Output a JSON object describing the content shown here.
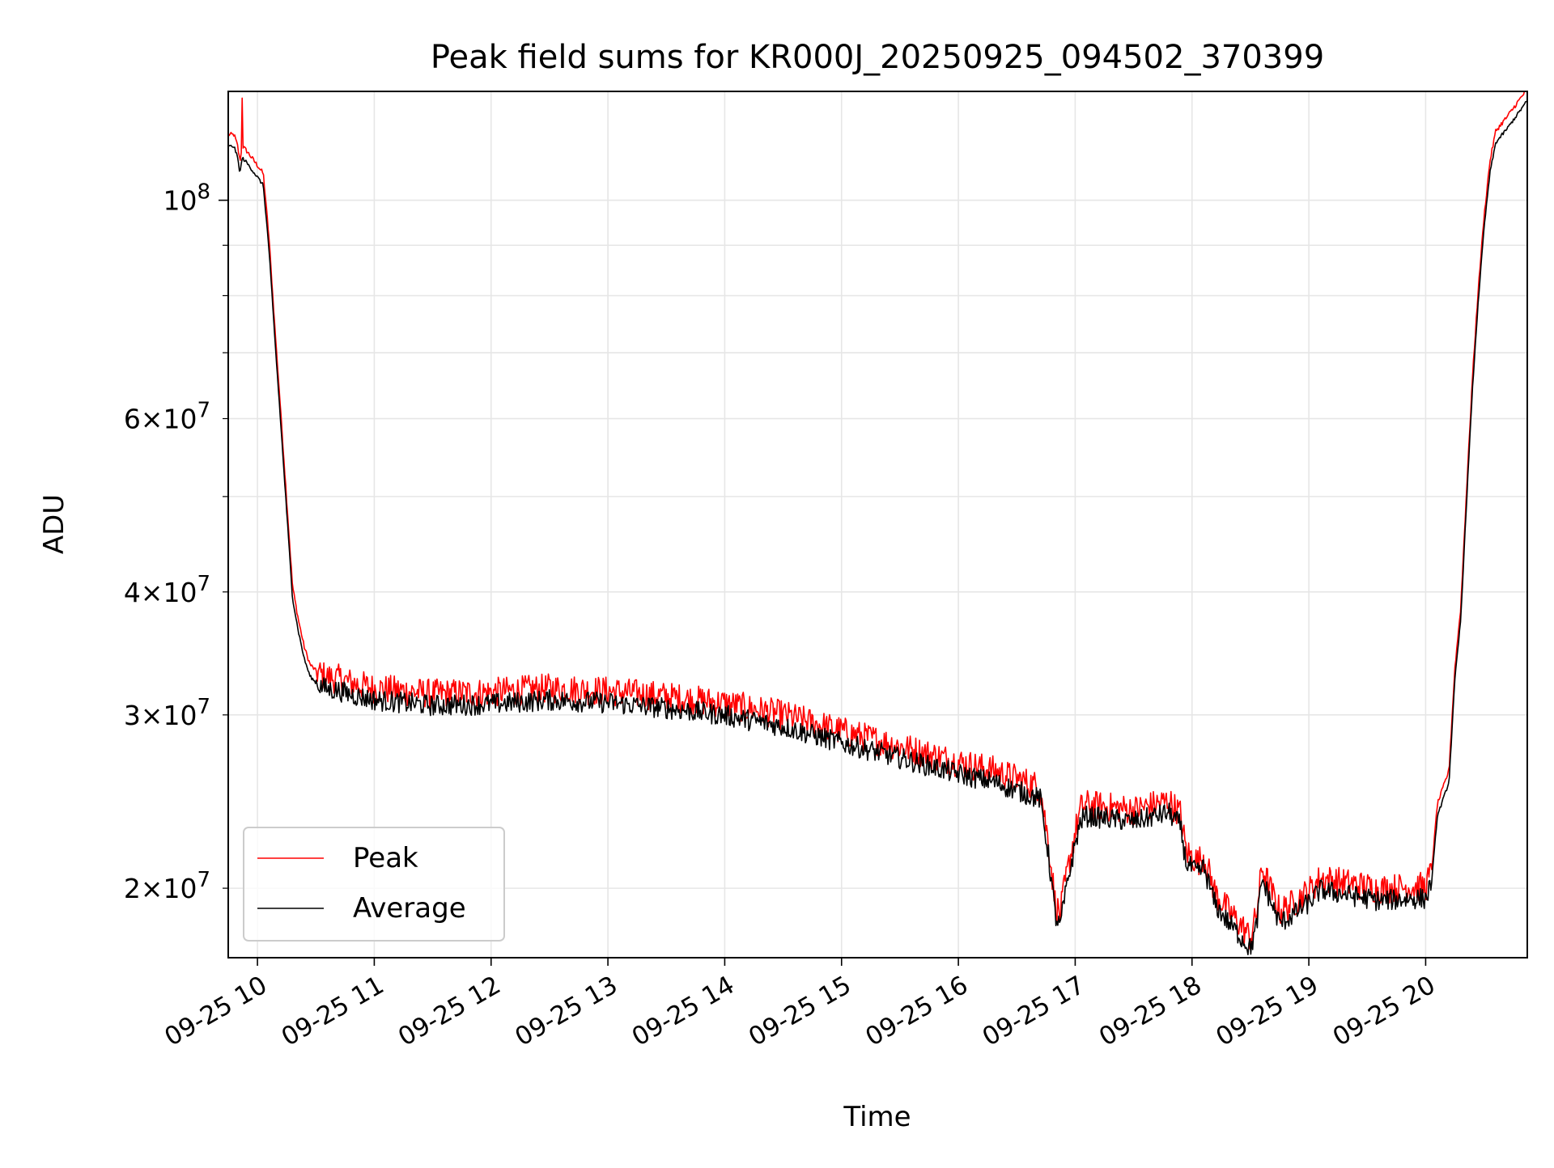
{
  "chart_data": {
    "type": "line",
    "title": "Peak field sums for KR000J_20250925_094502_370399",
    "xlabel": "Time",
    "ylabel": "ADU",
    "yscale": "log",
    "xlim": [
      9.75,
      20.87
    ],
    "ylim": [
      17000000,
      129000000
    ],
    "grid": true,
    "legend_position": "lower-left",
    "x_ticks": [
      {
        "value": 10,
        "label": "09-25 10"
      },
      {
        "value": 11,
        "label": "09-25 11"
      },
      {
        "value": 12,
        "label": "09-25 12"
      },
      {
        "value": 13,
        "label": "09-25 13"
      },
      {
        "value": 14,
        "label": "09-25 14"
      },
      {
        "value": 15,
        "label": "09-25 15"
      },
      {
        "value": 16,
        "label": "09-25 16"
      },
      {
        "value": 17,
        "label": "09-25 17"
      },
      {
        "value": 18,
        "label": "09-25 18"
      },
      {
        "value": 19,
        "label": "09-25 19"
      },
      {
        "value": 20,
        "label": "09-25 20"
      }
    ],
    "y_major_ticks": [
      {
        "value": 100000000,
        "base": "10",
        "exp": "8"
      }
    ],
    "y_minor_ticks": [
      {
        "value": 20000000,
        "mantissa": "2",
        "exp": "7"
      },
      {
        "value": 30000000,
        "mantissa": "3",
        "exp": "7"
      },
      {
        "value": 40000000,
        "mantissa": "4",
        "exp": "7"
      },
      {
        "value": 60000000,
        "mantissa": "6",
        "exp": "7"
      },
      {
        "value": 50000000,
        "mantissa": "",
        "exp": ""
      },
      {
        "value": 70000000,
        "mantissa": "",
        "exp": ""
      },
      {
        "value": 80000000,
        "mantissa": "",
        "exp": ""
      },
      {
        "value": 90000000,
        "mantissa": "",
        "exp": ""
      }
    ],
    "series": [
      {
        "name": "Peak",
        "color": "#ff0000",
        "noise": 0.035
      },
      {
        "name": "Average",
        "color": "#000000",
        "noise": 0.025
      }
    ],
    "x": [
      9.75,
      9.8,
      9.83,
      9.85,
      9.87,
      9.9,
      9.95,
      10.0,
      10.05,
      10.1,
      10.15,
      10.2,
      10.25,
      10.3,
      10.35,
      10.4,
      10.45,
      10.5,
      10.55,
      10.6,
      10.7,
      10.8,
      11.0,
      11.5,
      12.0,
      12.5,
      13.0,
      13.5,
      14.0,
      14.5,
      15.0,
      15.5,
      16.0,
      16.3,
      16.7,
      16.77,
      16.83,
      16.87,
      16.9,
      16.95,
      17.0,
      17.05,
      17.1,
      17.5,
      17.8,
      17.9,
      17.95,
      18.05,
      18.1,
      18.2,
      18.3,
      18.4,
      18.5,
      18.55,
      18.6,
      18.7,
      18.75,
      18.85,
      19.0,
      19.1,
      19.3,
      19.6,
      19.9,
      20.0,
      20.05,
      20.1,
      20.2,
      20.25,
      20.3,
      20.35,
      20.4,
      20.45,
      20.5,
      20.55,
      20.6,
      20.7,
      20.87
    ],
    "values": [
      115000000,
      115000000,
      112000000,
      108000000,
      112000000,
      111000000,
      109000000,
      107000000,
      105000000,
      90000000,
      73000000,
      60000000,
      49000000,
      40000000,
      37000000,
      34700000,
      33300000,
      32800000,
      32500000,
      32300000,
      32200000,
      31900000,
      31500000,
      31100000,
      31200000,
      31500000,
      31300000,
      30900000,
      30400000,
      29600000,
      28500000,
      27500000,
      26500000,
      26000000,
      25000000,
      22000000,
      19000000,
      18500000,
      19500000,
      21000000,
      22500000,
      23800000,
      24000000,
      23700000,
      24200000,
      23500000,
      21500000,
      21000000,
      21300000,
      19500000,
      18800000,
      18200000,
      17600000,
      18500000,
      20700000,
      19300000,
      18700000,
      19000000,
      19600000,
      20200000,
      20000000,
      19700000,
      19800000,
      19800000,
      20500000,
      24000000,
      26000000,
      33000000,
      38000000,
      50000000,
      65000000,
      80000000,
      95000000,
      108000000,
      116000000,
      120000000,
      128000000
    ],
    "peak_spike": {
      "x": 9.87,
      "value": 127000000
    }
  }
}
